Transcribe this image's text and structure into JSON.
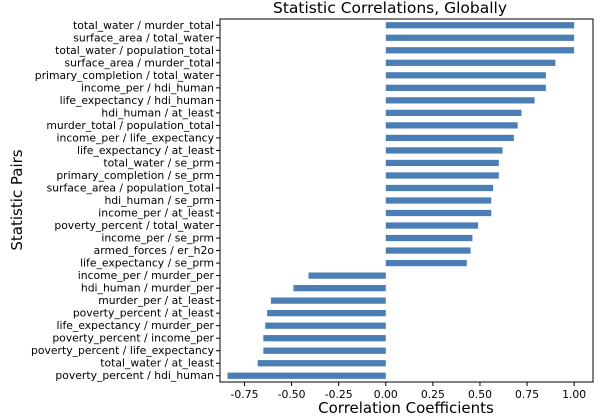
{
  "chart_data": {
    "type": "bar",
    "orientation": "horizontal",
    "title": "Statistic Correlations, Globally",
    "xlabel": "Correlation Coefficients",
    "ylabel": "Statistic Pairs",
    "xlim": [
      -0.88,
      1.1
    ],
    "xticks": [
      "-0.75",
      "-0.50",
      "-0.25",
      "0.00",
      "0.25",
      "0.50",
      "0.75",
      "1.00"
    ],
    "bar_color": "#4a7eb5",
    "grid": false,
    "categories": [
      "total_water / murder_total",
      "surface_area / total_water",
      "total_water / population_total",
      "surface_area / murder_total",
      "primary_completion / total_water",
      "income_per / hdi_human",
      "life_expectancy / hdi_human",
      "hdi_human / at_least",
      "murder_total / population_total",
      "income_per / life_expectancy",
      "life_expectancy / at_least",
      "total_water / se_prm",
      "primary_completion / se_prm",
      "surface_area / population_total",
      "hdi_human / se_prm",
      "income_per / at_least",
      "poverty_percent / total_water",
      "income_per / se_prm",
      "armed_forces / er_h2o",
      "life_expectancy / se_prm",
      "income_per / murder_per",
      "hdi_human / murder_per",
      "murder_per / at_least",
      "poverty_percent / at_least",
      "life_expectancy / murder_per",
      "poverty_percent / income_per",
      "poverty_percent / life_expectancy",
      "total_water / at_least",
      "poverty_percent / hdi_human"
    ],
    "values": [
      1.0,
      1.0,
      1.0,
      0.9,
      0.85,
      0.85,
      0.79,
      0.72,
      0.7,
      0.68,
      0.62,
      0.6,
      0.6,
      0.57,
      0.56,
      0.56,
      0.49,
      0.46,
      0.45,
      0.43,
      -0.41,
      -0.49,
      -0.61,
      -0.63,
      -0.64,
      -0.65,
      -0.65,
      -0.68,
      -0.84
    ]
  }
}
